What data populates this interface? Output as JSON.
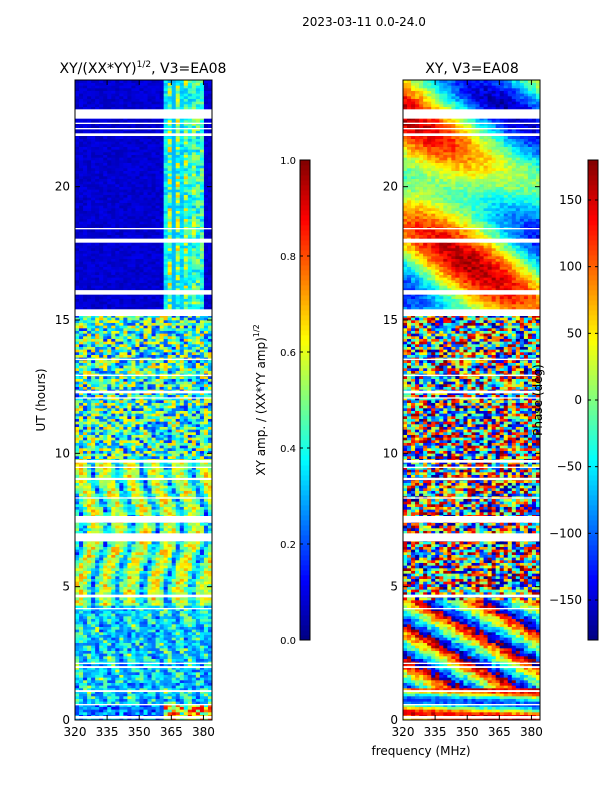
{
  "figure": {
    "suptitle": "2023-03-11 0.0-24.0",
    "shared_xlabel": "frequency (MHz)"
  },
  "colors": {
    "colormap": [
      "#00007f",
      "#0000ff",
      "#007fff",
      "#00ffff",
      "#7fff7f",
      "#ffff00",
      "#ff7f00",
      "#ff0000",
      "#7f0000"
    ],
    "gap": "#ffffff",
    "axis": "#000000",
    "background": "#ffffff"
  },
  "chart_data": [
    {
      "type": "heatmap",
      "title": "XY/(XX*YY)",
      "title_exponent": "1/2",
      "title_suffix": ", V3=EA08",
      "xlabel": "frequency (MHz)",
      "ylabel": "UT (hours)",
      "xlim": [
        320,
        384
      ],
      "ylim": [
        0,
        24
      ],
      "xticks": [
        320,
        335,
        350,
        365,
        380
      ],
      "yticks": [
        0,
        5,
        10,
        15,
        20
      ],
      "colorbar": {
        "label": "XY amp. / (XX*YY amp)",
        "label_exponent": "1/2",
        "range": [
          0.0,
          1.0
        ],
        "ticks": [
          "0.0",
          "0.2",
          "0.4",
          "0.6",
          "0.8",
          "1.0"
        ]
      },
      "value_range": [
        0,
        1
      ],
      "gaps_hours": [
        [
          0.05,
          0.15
        ],
        [
          0.55,
          0.6
        ],
        [
          1.05,
          1.12
        ],
        [
          1.95,
          2.02
        ],
        [
          2.1,
          2.15
        ],
        [
          4.15,
          4.2
        ],
        [
          4.6,
          4.7
        ],
        [
          6.7,
          7.0
        ],
        [
          7.4,
          7.65
        ],
        [
          8.3,
          8.35
        ],
        [
          9.0,
          9.08
        ],
        [
          9.45,
          9.5
        ],
        [
          9.65,
          9.75
        ],
        [
          12.05,
          12.1
        ],
        [
          12.25,
          12.35
        ],
        [
          12.9,
          12.95
        ],
        [
          13.5,
          13.55
        ],
        [
          15.15,
          15.4
        ],
        [
          15.95,
          16.12
        ],
        [
          17.9,
          18.05
        ],
        [
          18.4,
          18.45
        ],
        [
          21.9,
          22.0
        ],
        [
          22.15,
          22.2
        ],
        [
          22.35,
          22.4
        ],
        [
          22.55,
          22.9
        ]
      ],
      "segments": [
        {
          "from": 0.0,
          "to": 0.6,
          "pattern": "rfi-low",
          "level": 0.35
        },
        {
          "from": 0.6,
          "to": 4.3,
          "pattern": "ripple",
          "level": 0.3
        },
        {
          "from": 4.3,
          "to": 9.8,
          "pattern": "structured",
          "level": 0.3
        },
        {
          "from": 9.8,
          "to": 15.2,
          "pattern": "noisy",
          "level": 0.4
        },
        {
          "from": 15.2,
          "to": 24.0,
          "pattern": "quiet-rfi",
          "level": 0.06
        }
      ]
    },
    {
      "type": "heatmap",
      "title": "XY, V3=EA08",
      "xlabel": "frequency (MHz)",
      "ylabel": "",
      "xlim": [
        320,
        384
      ],
      "ylim": [
        0,
        24
      ],
      "xticks": [
        320,
        335,
        350,
        365,
        380
      ],
      "yticks": [
        0,
        5,
        10,
        15,
        20
      ],
      "colorbar": {
        "label": "Phase (deg)",
        "range": [
          -180,
          180
        ],
        "ticks": [
          "150",
          "100",
          "50",
          "0",
          "−50",
          "−100",
          "−150"
        ],
        "tick_values": [
          150,
          100,
          50,
          0,
          -50,
          -100,
          -150
        ]
      },
      "value_range": [
        -180,
        180
      ],
      "gaps_hours": [
        [
          0.05,
          0.15
        ],
        [
          0.55,
          0.6
        ],
        [
          1.05,
          1.12
        ],
        [
          1.95,
          2.02
        ],
        [
          2.1,
          2.15
        ],
        [
          4.15,
          4.2
        ],
        [
          4.6,
          4.7
        ],
        [
          6.7,
          7.0
        ],
        [
          7.4,
          7.65
        ],
        [
          8.3,
          8.35
        ],
        [
          9.0,
          9.08
        ],
        [
          9.45,
          9.5
        ],
        [
          9.65,
          9.75
        ],
        [
          12.05,
          12.1
        ],
        [
          12.25,
          12.35
        ],
        [
          12.9,
          12.95
        ],
        [
          13.5,
          13.55
        ],
        [
          15.15,
          15.4
        ],
        [
          15.95,
          16.12
        ],
        [
          17.9,
          18.05
        ],
        [
          18.4,
          18.45
        ],
        [
          21.9,
          22.0
        ],
        [
          22.15,
          22.2
        ],
        [
          22.35,
          22.4
        ],
        [
          22.55,
          22.9
        ]
      ],
      "segments": [
        {
          "from": 0.0,
          "to": 1.2,
          "pattern": "banded",
          "level": 0.6
        },
        {
          "from": 1.2,
          "to": 4.5,
          "pattern": "wrapping",
          "level": 0.5
        },
        {
          "from": 4.5,
          "to": 15.2,
          "pattern": "noisy",
          "level": 0.5
        },
        {
          "from": 15.2,
          "to": 24.0,
          "pattern": "smooth",
          "level": 0.7
        }
      ]
    }
  ]
}
